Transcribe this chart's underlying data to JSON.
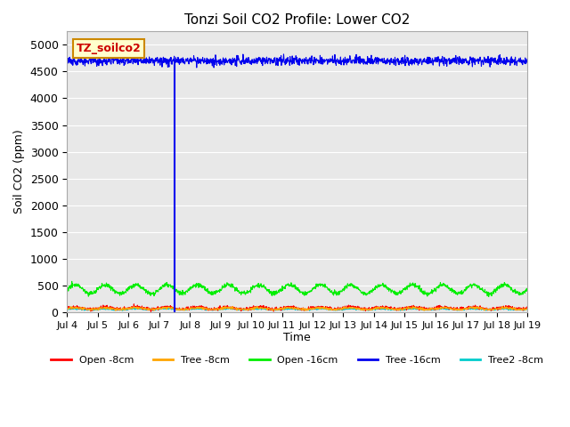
{
  "title": "Tonzi Soil CO2 Profile: Lower CO2",
  "ylabel": "Soil CO2 (ppm)",
  "xlabel": "Time",
  "legend_label": "TZ_soilco2",
  "plot_bg_color": "#e8e8e8",
  "ylim": [
    0,
    5250
  ],
  "yticks": [
    0,
    500,
    1000,
    1500,
    2000,
    2500,
    3000,
    3500,
    4000,
    4500,
    5000
  ],
  "x_start_day": 4,
  "x_end_day": 19,
  "series": {
    "open_8cm": {
      "color": "#ff0000",
      "base": 75,
      "amp": 20,
      "period": 1.0,
      "noise": 15
    },
    "tree_8cm": {
      "color": "#ffa500",
      "base": 65,
      "amp": 15,
      "period": 1.0,
      "noise": 10
    },
    "open_16cm": {
      "color": "#00ee00",
      "base": 430,
      "amp": 80,
      "period": 1.0,
      "noise": 20
    },
    "tree_16cm": {
      "color": "#0000ee",
      "base": 4700,
      "amp": 0,
      "period": 1.0,
      "noise": 40
    },
    "tree2_8cm": {
      "color": "#00cccc",
      "base": 55,
      "amp": 10,
      "period": 1.0,
      "noise": 8
    }
  },
  "spike_day": 7.5,
  "spike_color": "#0000ee",
  "xtick_labels": [
    "Jul 4",
    "Jul 5",
    "Jul 6",
    "Jul 7",
    "Jul 8",
    "Jul 9",
    "Jul 10",
    "Jul 11",
    "Jul 12",
    "Jul 13",
    "Jul 14",
    "Jul 15",
    "Jul 16",
    "Jul 17",
    "Jul 18",
    "Jul 19"
  ],
  "xtick_days": [
    4,
    5,
    6,
    7,
    8,
    9,
    10,
    11,
    12,
    13,
    14,
    15,
    16,
    17,
    18,
    19
  ]
}
